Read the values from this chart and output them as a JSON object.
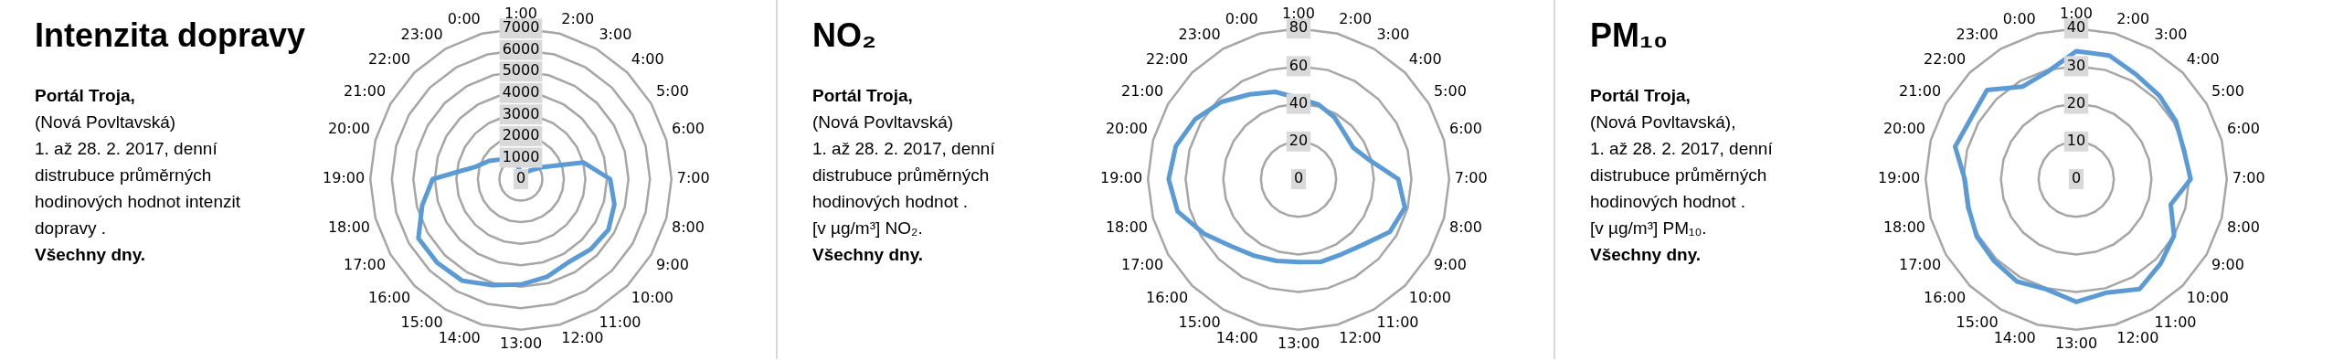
{
  "chart_data": [
    {
      "type": "radar",
      "title": "Intenzita dopravy",
      "annotations": [
        "Portál Troja,",
        "(Nová Povltavská)",
        "1. až 28. 2. 2017, denní",
        "distrubuce průměrných",
        "hodinových hodnot intenzit",
        "dopravy .",
        "Všechny dny."
      ],
      "categories": [
        "1:00",
        "2:00",
        "3:00",
        "4:00",
        "5:00",
        "6:00",
        "7:00",
        "8:00",
        "9:00",
        "10:00",
        "11:00",
        "12:00",
        "13:00",
        "14:00",
        "15:00",
        "16:00",
        "17:00",
        "18:00",
        "19:00",
        "20:00",
        "21:00",
        "22:00",
        "23:00",
        "0:00"
      ],
      "series": [
        {
          "color": "#5b9bd5",
          "values": [
            300,
            280,
            300,
            550,
            1100,
            3000,
            4150,
            4500,
            4700,
            4600,
            4450,
            4700,
            4900,
            5100,
            5450,
            5500,
            5500,
            4750,
            4100,
            2200,
            1700,
            1300,
            1000,
            700
          ]
        }
      ],
      "ylim": [
        0,
        7000
      ],
      "yticks": [
        0,
        1000,
        2000,
        3000,
        4000,
        5000,
        6000,
        7000
      ],
      "grid": true,
      "marker": "none"
    },
    {
      "type": "radar",
      "title": "NO₂",
      "annotations": [
        "Portál Troja,",
        "(Nová Povltavská)",
        "1. až 28. 2. 2017, denní",
        "distrubuce průměrných",
        "hodinových hodnot .",
        "[v µg/m³] NO₂.",
        "Všechny dny."
      ],
      "categories": [
        "1:00",
        "2:00",
        "3:00",
        "4:00",
        "5:00",
        "6:00",
        "7:00",
        "8:00",
        "9:00",
        "10:00",
        "11:00",
        "12:00",
        "13:00",
        "14:00",
        "15:00",
        "16:00",
        "17:00",
        "18:00",
        "19:00",
        "20:00",
        "21:00",
        "22:00",
        "23:00",
        "0:00"
      ],
      "series": [
        {
          "color": "#5b9bd5",
          "values": [
            43,
            41,
            38,
            34.5,
            33.5,
            39,
            53,
            58.5,
            56,
            49,
            46,
            45.5,
            44,
            45,
            47,
            50.5,
            58,
            66.5,
            69,
            67.5,
            63.5,
            58,
            52,
            48
          ]
        }
      ],
      "ylim": [
        0,
        80
      ],
      "yticks": [
        0,
        20,
        40,
        60,
        80
      ],
      "grid": true,
      "marker": "none"
    },
    {
      "type": "radar",
      "title": "PM₁₀",
      "annotations": [
        "Portál Troja,",
        "(Nová Povltavská),",
        "1. až 28. 2. 2017, denní",
        "distrubuce průměrných",
        "hodinových hodnot .",
        "[v µg/m³] PM₁₀.",
        "Všechny dny."
      ],
      "categories": [
        "1:00",
        "2:00",
        "3:00",
        "4:00",
        "5:00",
        "6:00",
        "7:00",
        "8:00",
        "9:00",
        "10:00",
        "11:00",
        "12:00",
        "13:00",
        "14:00",
        "15:00",
        "16:00",
        "17:00",
        "18:00",
        "19:00",
        "20:00",
        "21:00",
        "22:00",
        "23:00",
        "0:00"
      ],
      "series": [
        {
          "color": "#5b9bd5",
          "values": [
            34,
            34,
            32,
            31.3,
            30.6,
            29.6,
            30.4,
            26,
            30,
            31.7,
            33.7,
            31.2,
            32.6,
            30.3,
            31.4,
            30.8,
            30.5,
            29.6,
            29.6,
            33.3,
            32.3,
            33.5,
            28.4,
            29.5
          ]
        }
      ],
      "ylim": [
        0,
        40
      ],
      "yticks": [
        0,
        10,
        20,
        30,
        40
      ],
      "grid": true,
      "marker": "none"
    }
  ]
}
